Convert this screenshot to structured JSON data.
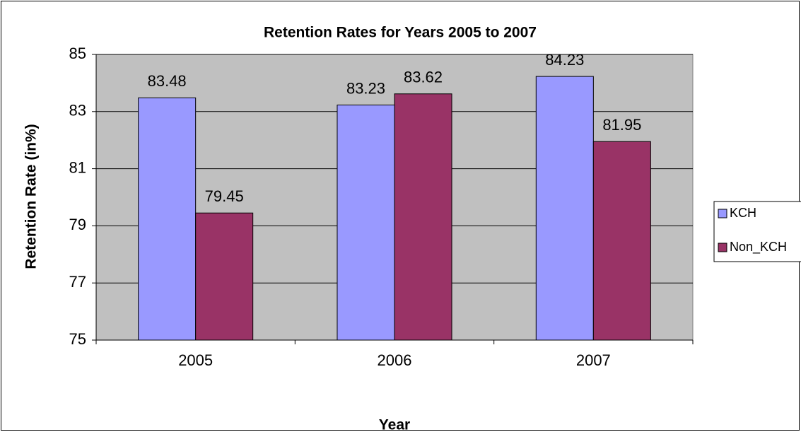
{
  "chart_data": {
    "type": "bar",
    "title": "Retention Rates for Years 2005 to 2007",
    "x_label": "Year",
    "y_label": "Retention Rate (in%)",
    "categories": [
      "2005",
      "2006",
      "2007"
    ],
    "series": [
      {
        "name": "KCH",
        "color": "#9999ff",
        "values": [
          83.48,
          83.23,
          84.23
        ]
      },
      {
        "name": "Non_KCH",
        "color": "#993366",
        "values": [
          79.45,
          83.62,
          81.95
        ]
      }
    ],
    "ylim": [
      75,
      85
    ],
    "yticks": [
      75,
      77,
      79,
      81,
      83,
      85
    ],
    "grid": true,
    "legend": "right",
    "plot_background": "#c0c0c0"
  }
}
